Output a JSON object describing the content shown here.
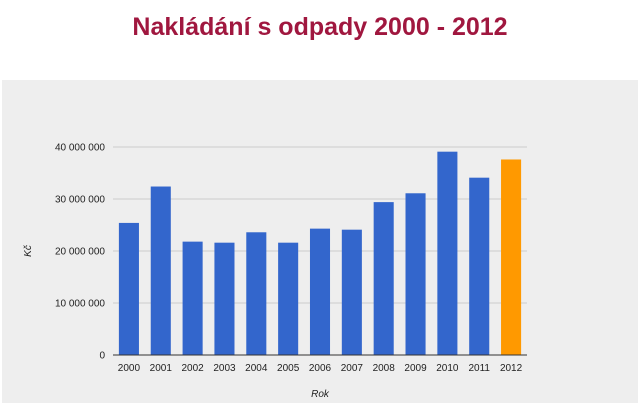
{
  "title": "Nakládání s odpady 2000 - 2012",
  "chart_data": {
    "type": "bar",
    "title": "Nakládání s odpady 2000 - 2012",
    "xlabel": "Rok",
    "ylabel": "Kč",
    "categories": [
      "2000",
      "2001",
      "2002",
      "2003",
      "2004",
      "2005",
      "2006",
      "2007",
      "2008",
      "2009",
      "2010",
      "2011",
      "2012"
    ],
    "values": [
      25400000,
      32400000,
      21800000,
      21600000,
      23600000,
      21600000,
      24300000,
      24100000,
      29400000,
      31100000,
      39100000,
      34100000,
      37600000
    ],
    "ylim": [
      0,
      40000000
    ],
    "yticks": [
      0,
      10000000,
      20000000,
      30000000,
      40000000
    ],
    "ytick_labels": [
      "0",
      "10 000 000",
      "20 000 000",
      "30 000 000",
      "40 000 000"
    ],
    "grid": true,
    "legend": "none",
    "colors": {
      "default_bar": "#3366cc",
      "highlight_bar": "#ff9900",
      "highlight_category": "2012",
      "title": "#a0173f",
      "background": "#eeeeee"
    }
  }
}
